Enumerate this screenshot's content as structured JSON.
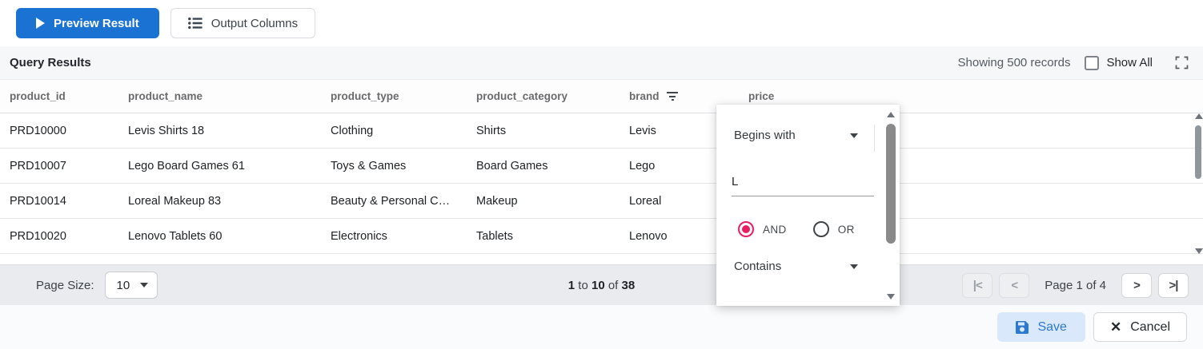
{
  "colors": {
    "primary_blue": "#1a73d2",
    "accent_pink": "#e91e63",
    "save_bg": "#d9e8fb",
    "save_text": "#2b79d2",
    "footer_bg": "#e9ebee"
  },
  "toolbar": {
    "preview_button": "Preview Result",
    "output_columns_button": "Output Columns"
  },
  "results_header": {
    "title": "Query Results",
    "showing_text": "Showing 500 records",
    "show_all_label": "Show All",
    "show_all_checked": false
  },
  "table": {
    "columns": [
      {
        "label": "product_id"
      },
      {
        "label": "product_name"
      },
      {
        "label": "product_type"
      },
      {
        "label": "product_category"
      },
      {
        "label": "brand",
        "has_filter_icon": true
      },
      {
        "label": "price"
      }
    ],
    "rows": [
      [
        "PRD10000",
        "Levis Shirts 18",
        "Clothing",
        "Shirts",
        "Levis",
        ""
      ],
      [
        "PRD10007",
        "Lego Board Games 61",
        "Toys & Games",
        "Board Games",
        "Lego",
        ""
      ],
      [
        "PRD10014",
        "Loreal Makeup 83",
        "Beauty & Personal C…",
        "Makeup",
        "Loreal",
        ""
      ],
      [
        "PRD10020",
        "Lenovo Tablets 60",
        "Electronics",
        "Tablets",
        "Lenovo",
        ""
      ]
    ]
  },
  "filter_popup": {
    "operator_1": "Begins with",
    "value": "L",
    "and_label": "AND",
    "or_label": "OR",
    "and_selected": true,
    "operator_2": "Contains"
  },
  "footer": {
    "page_size_label": "Page Size:",
    "page_size_value": "10",
    "summary": {
      "from": "1",
      "to_word": "to",
      "to": "10",
      "of_word": "of",
      "total": "38"
    },
    "page_indicator": "Page 1 of 4",
    "first_icon": "|<",
    "prev_icon": "<",
    "next_icon": ">",
    "last_icon": ">|"
  },
  "actions": {
    "save": "Save",
    "cancel": "Cancel"
  }
}
